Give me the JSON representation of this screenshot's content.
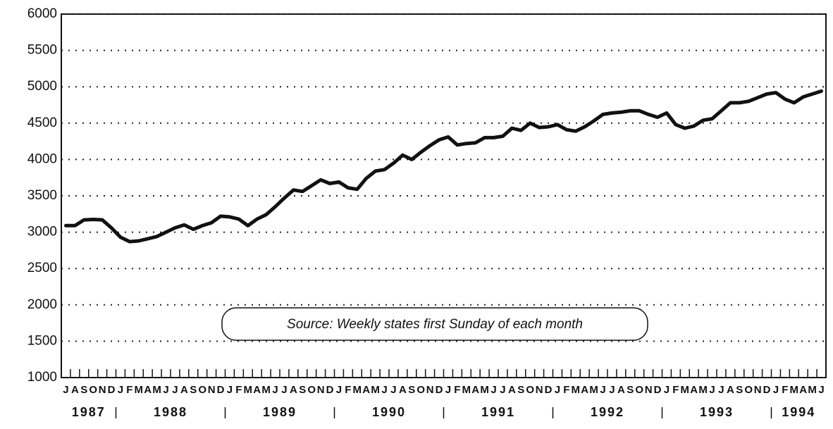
{
  "chart_data": {
    "type": "line",
    "annotation": "Source: Weekly states first Sunday of each month",
    "categories": [
      "J",
      "A",
      "S",
      "O",
      "N",
      "D",
      "J",
      "F",
      "M",
      "A",
      "M",
      "J",
      "J",
      "A",
      "S",
      "O",
      "N",
      "D",
      "J",
      "F",
      "M",
      "A",
      "M",
      "J",
      "J",
      "A",
      "S",
      "O",
      "N",
      "D",
      "J",
      "F",
      "M",
      "A",
      "M",
      "J",
      "J",
      "A",
      "S",
      "O",
      "N",
      "D",
      "J",
      "F",
      "M",
      "A",
      "M",
      "J",
      "J",
      "A",
      "S",
      "O",
      "N",
      "D",
      "J",
      "F",
      "M",
      "A",
      "M",
      "J",
      "J",
      "A",
      "S",
      "O",
      "N",
      "D",
      "J",
      "F",
      "M",
      "A",
      "M",
      "J",
      "J",
      "A",
      "S",
      "O",
      "N",
      "D",
      "J",
      "F",
      "M",
      "A",
      "M",
      "J"
    ],
    "year_labels": [
      "1987",
      "1988",
      "1989",
      "1990",
      "1991",
      "1992",
      "1993",
      "1994"
    ],
    "series": [
      {
        "color": "#111111",
        "values": [
          3090,
          3090,
          3170,
          3175,
          3170,
          3060,
          2930,
          2870,
          2880,
          2910,
          2940,
          3000,
          3060,
          3100,
          3040,
          3090,
          3130,
          3220,
          3210,
          3180,
          3090,
          3180,
          3240,
          3350,
          3470,
          3580,
          3560,
          3640,
          3720,
          3670,
          3690,
          3610,
          3590,
          3740,
          3840,
          3860,
          3950,
          4060,
          4000,
          4100,
          4190,
          4270,
          4310,
          4200,
          4220,
          4230,
          4300,
          4300,
          4320,
          4430,
          4400,
          4500,
          4440,
          4450,
          4480,
          4410,
          4390,
          4450,
          4530,
          4620,
          4640,
          4650,
          4670,
          4670,
          4620,
          4580,
          4640,
          4480,
          4430,
          4460,
          4540,
          4560,
          4670,
          4780,
          4780,
          4800,
          4850,
          4900,
          4920,
          4830,
          4780,
          4860,
          4900,
          4940
        ]
      }
    ],
    "ylim": [
      1000,
      6000
    ],
    "yticks": [
      1000,
      1500,
      2000,
      2500,
      3000,
      3500,
      4000,
      4500,
      5000,
      5500,
      6000
    ],
    "grid": true
  }
}
